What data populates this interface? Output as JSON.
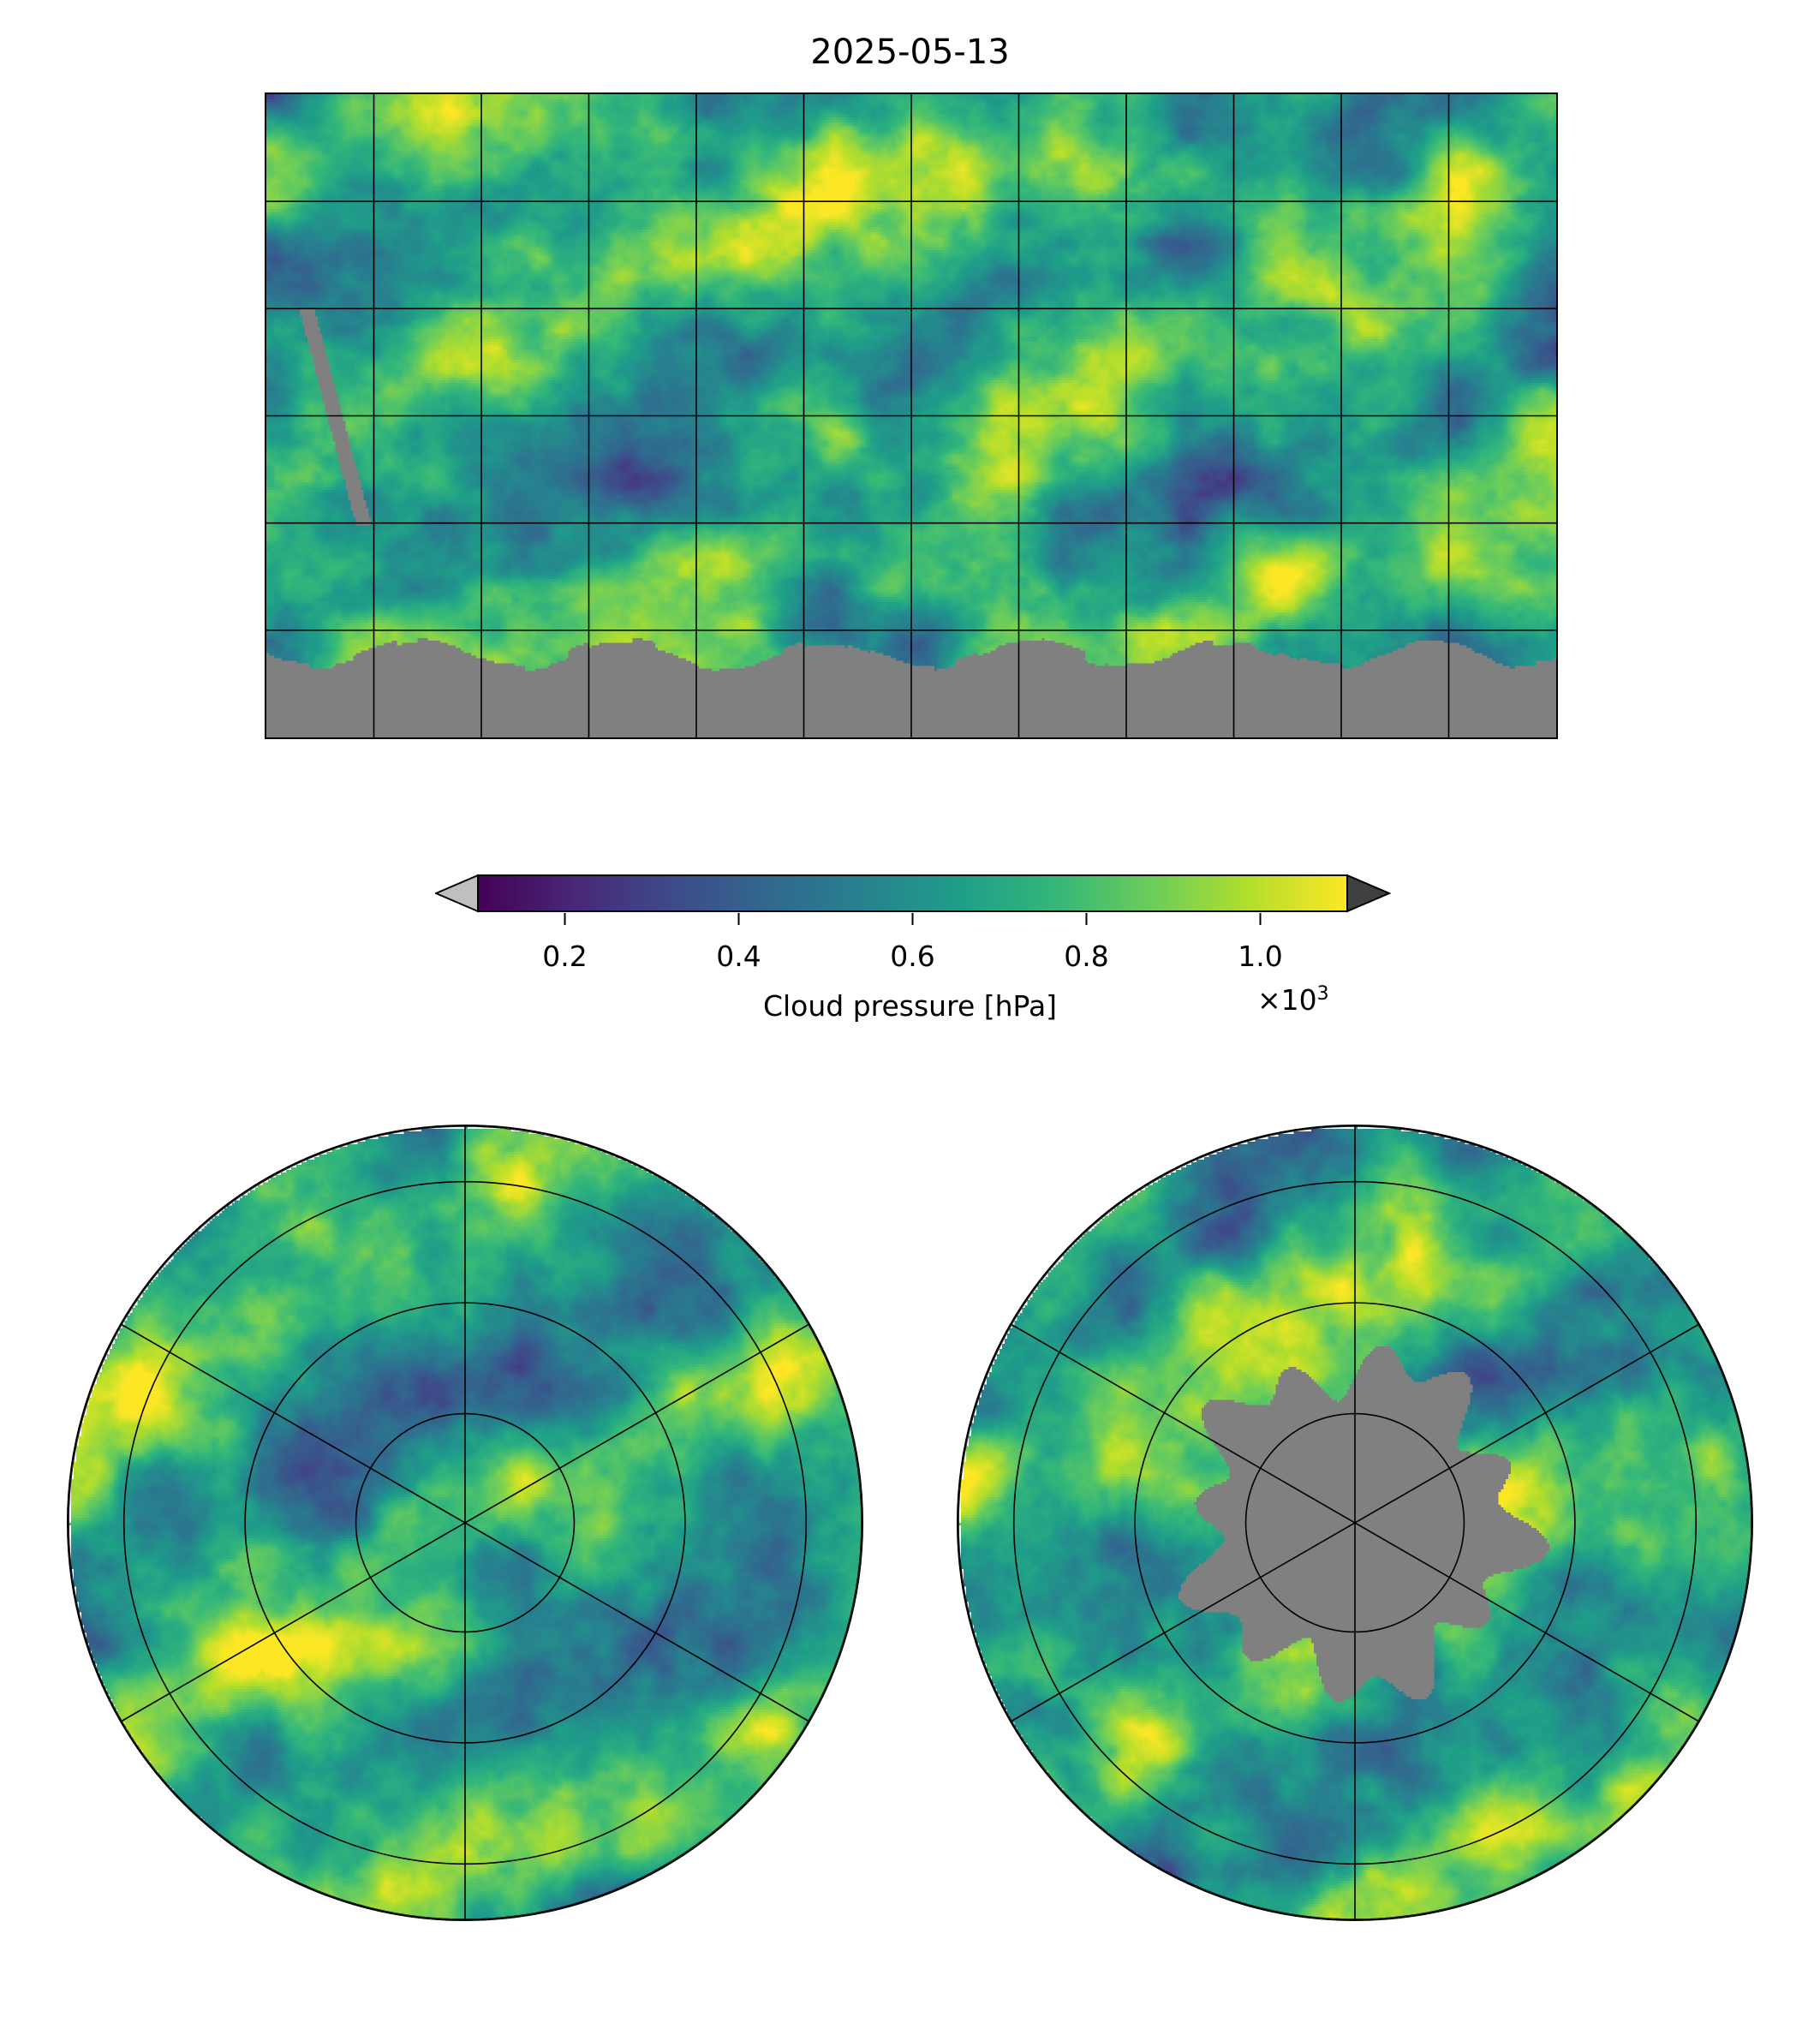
{
  "title": "2025-05-13",
  "colorbar": {
    "label": "Cloud pressure [hPa]",
    "multiplier": "×10",
    "multiplier_exp": "3",
    "ticks": [
      "0.2",
      "0.4",
      "0.6",
      "0.8",
      "1.0"
    ],
    "tick_values": [
      200,
      400,
      600,
      800,
      1000
    ],
    "vmin": 100,
    "vmax": 1100,
    "under_color": "#bfbfbf",
    "over_color": "#404040",
    "colormap": "viridis",
    "extend": "both"
  },
  "chart_data": [
    {
      "type": "heatmap",
      "title": "2025-05-13",
      "projection": "plate-carree",
      "region": "global",
      "grid": true,
      "grid_spacing_deg": 30,
      "missing_color": "#808080",
      "value_range_hPa": [
        100,
        1100
      ]
    },
    {
      "type": "heatmap",
      "projection": "north-polar-stereographic",
      "region": "northern hemisphere",
      "grid": true,
      "missing_color": "#808080"
    },
    {
      "type": "heatmap",
      "projection": "south-polar-stereographic",
      "region": "southern hemisphere",
      "grid": true,
      "missing_color": "#808080"
    }
  ]
}
